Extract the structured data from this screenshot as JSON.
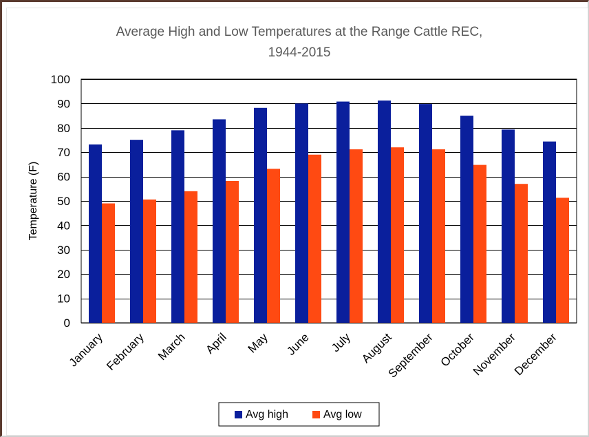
{
  "chart_data": {
    "type": "bar",
    "title_line1": "Average High and Low Temperatures at the Range Cattle REC,",
    "title_line2": "1944-2015",
    "xlabel": "",
    "ylabel": "Temperature (F)",
    "ylim": [
      0,
      100
    ],
    "yticks": [
      0,
      10,
      20,
      30,
      40,
      50,
      60,
      70,
      80,
      90,
      100
    ],
    "grid": true,
    "legend_position": "bottom",
    "categories": [
      "January",
      "February",
      "March",
      "April",
      "May",
      "June",
      "July",
      "August",
      "September",
      "October",
      "November",
      "December"
    ],
    "series": [
      {
        "name": "Avg high",
        "color": "#0a1f9c",
        "values": [
          73.2,
          75.1,
          79.0,
          83.5,
          88.2,
          90.0,
          90.8,
          91.2,
          89.8,
          85.0,
          79.3,
          74.4
        ]
      },
      {
        "name": "Avg low",
        "color": "#ff4a12",
        "values": [
          49.0,
          50.6,
          54.0,
          58.2,
          63.2,
          69.0,
          71.2,
          72.0,
          71.2,
          64.8,
          57.0,
          51.3
        ]
      }
    ]
  }
}
